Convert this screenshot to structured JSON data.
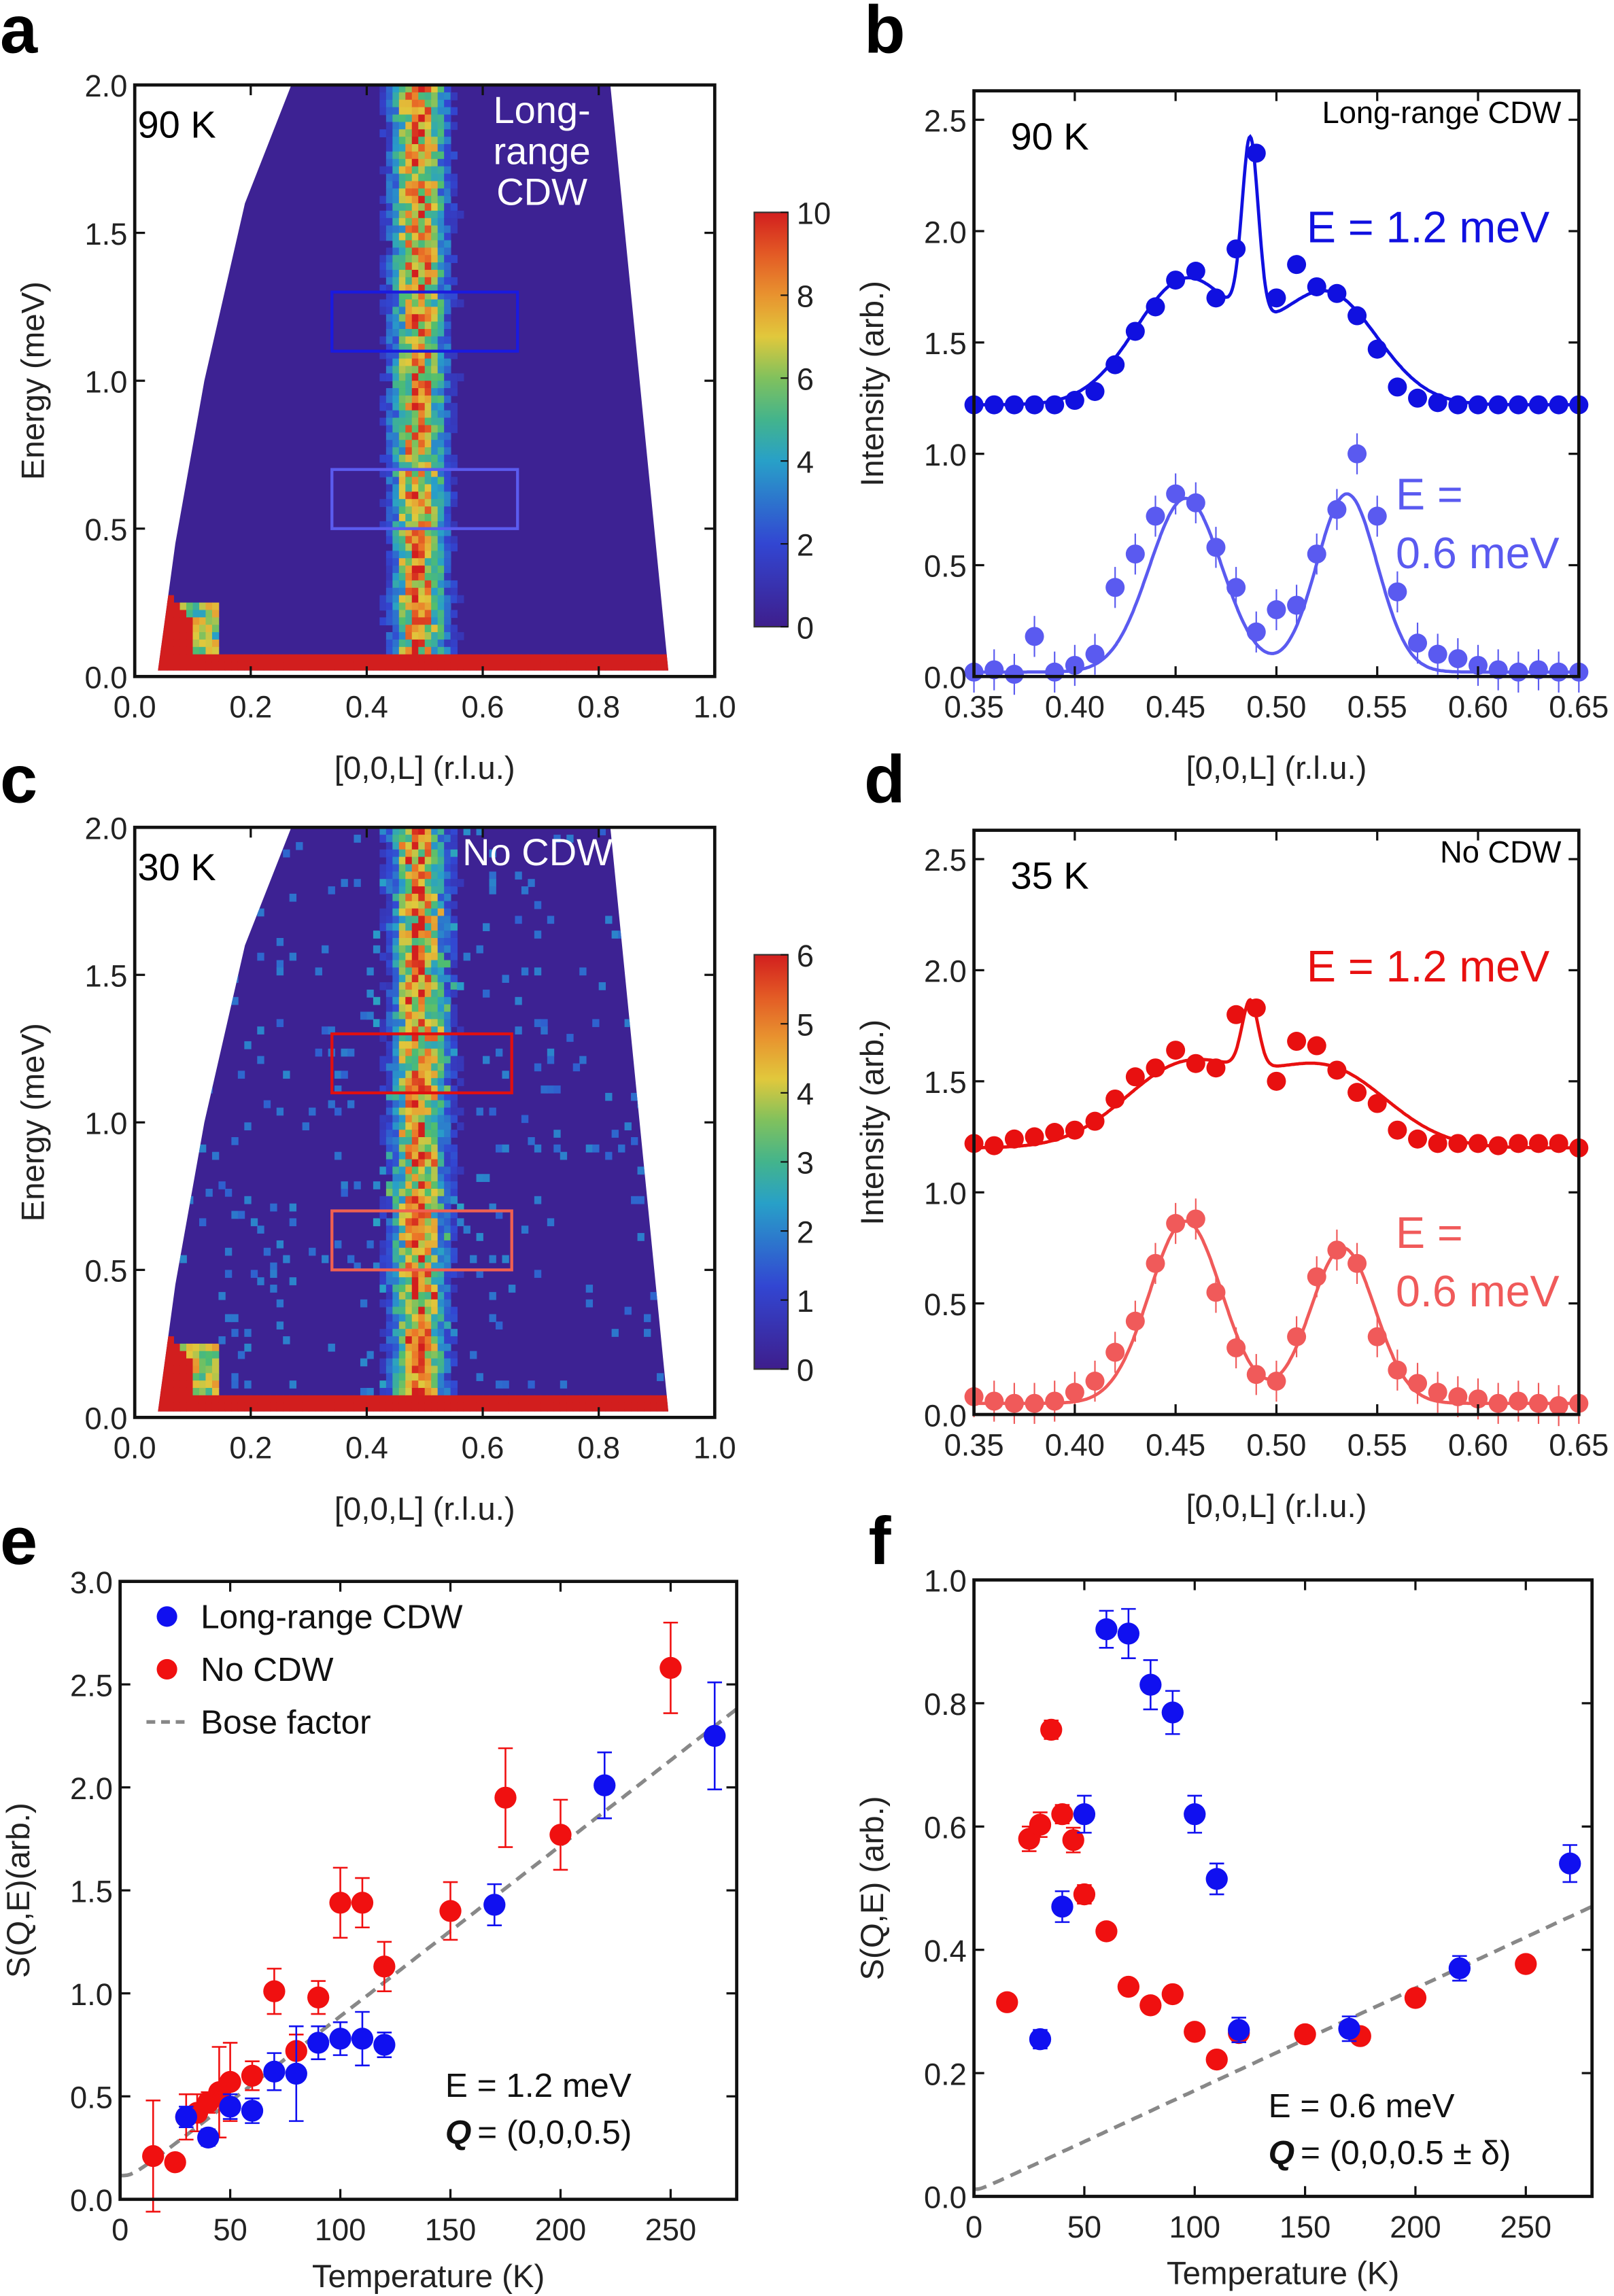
{
  "panel_labels": [
    "a",
    "b",
    "c",
    "d",
    "e",
    "f"
  ],
  "chart_data": [
    {
      "id": "a",
      "type": "heatmap",
      "annotation_temp": "90 K",
      "annotation_state": [
        "Long-",
        "range",
        "CDW"
      ],
      "xlabel": "[0,0,L] (r.l.u.)",
      "ylabel": "Energy (meV)",
      "xlim": [
        0,
        1.0
      ],
      "ylim": [
        0,
        2.0
      ],
      "xticks": [
        "0.0",
        "0.2",
        "0.4",
        "0.6",
        "0.8",
        "1.0"
      ],
      "yticks": [
        "0.0",
        "0.5",
        "1.0",
        "1.5",
        "2.0"
      ],
      "colorbar": {
        "range": [
          0,
          10
        ],
        "ticks": [
          "0",
          "2",
          "4",
          "6",
          "8",
          "10"
        ]
      },
      "boxes": [
        {
          "L": [
            0.34,
            0.66
          ],
          "E": [
            1.1,
            1.3
          ],
          "color": "#1a1adf"
        },
        {
          "L": [
            0.34,
            0.66
          ],
          "E": [
            0.5,
            0.7
          ],
          "color": "#5b5bef"
        }
      ],
      "peak_L": 0.49
    },
    {
      "id": "b",
      "type": "scatter",
      "annotation_temp": "90 K",
      "annotation_state": "Long-range CDW",
      "xlabel": "[0,0,L] (r.l.u.)",
      "ylabel": "Intensity (arb.)",
      "xlim": [
        0.35,
        0.65
      ],
      "ylim": [
        0,
        2.63
      ],
      "xticks": [
        "0.35",
        "0.40",
        "0.45",
        "0.50",
        "0.55",
        "0.60",
        "0.65"
      ],
      "yticks": [
        "0.0",
        "0.5",
        "1.0",
        "1.5",
        "2.0",
        "2.5"
      ],
      "x": [
        0.35,
        0.36,
        0.37,
        0.38,
        0.39,
        0.4,
        0.41,
        0.42,
        0.43,
        0.44,
        0.45,
        0.46,
        0.47,
        0.48,
        0.49,
        0.5,
        0.51,
        0.52,
        0.53,
        0.54,
        0.55,
        0.56,
        0.57,
        0.58,
        0.59,
        0.6,
        0.61,
        0.62,
        0.63,
        0.64,
        0.65
      ],
      "series": [
        {
          "name": "E = 1.2 meV",
          "label_lines": [
            "E = 1.2 meV"
          ],
          "color": "#1010e0",
          "values": [
            1.22,
            1.22,
            1.22,
            1.22,
            1.22,
            1.24,
            1.28,
            1.4,
            1.55,
            1.66,
            1.78,
            1.82,
            1.7,
            1.92,
            2.35,
            1.7,
            1.85,
            1.75,
            1.72,
            1.62,
            1.47,
            1.3,
            1.25,
            1.23,
            1.22,
            1.22,
            1.22,
            1.22,
            1.22,
            1.22,
            1.22
          ],
          "fit": {
            "baseline": 1.22,
            "peaks": [
              [
                0.455,
                0.56,
                0.025
              ],
              [
                0.525,
                0.5,
                0.025
              ],
              [
                0.487,
                0.8,
                0.004
              ]
            ]
          }
        },
        {
          "name": "E = 0.6 meV",
          "label_lines": [
            "E =",
            "0.6 meV"
          ],
          "color": "#5a5af0",
          "values": [
            0.02,
            0.03,
            0.01,
            0.18,
            0.02,
            0.05,
            0.1,
            0.4,
            0.55,
            0.72,
            0.82,
            0.78,
            0.58,
            0.4,
            0.2,
            0.3,
            0.32,
            0.55,
            0.75,
            1.0,
            0.72,
            0.38,
            0.15,
            0.1,
            0.08,
            0.05,
            0.03,
            0.02,
            0.03,
            0.02,
            0.02
          ],
          "fit": {
            "baseline": 0.02,
            "peaks": [
              [
                0.455,
                0.78,
                0.018
              ],
              [
                0.535,
                0.8,
                0.015
              ]
            ]
          }
        }
      ]
    },
    {
      "id": "c",
      "type": "heatmap",
      "annotation_temp": "30 K",
      "annotation_state": [
        "No CDW"
      ],
      "xlabel": "[0,0,L] (r.l.u.)",
      "ylabel": "Energy (meV)",
      "xlim": [
        0,
        1.0
      ],
      "ylim": [
        0,
        2.0
      ],
      "xticks": [
        "0.0",
        "0.2",
        "0.4",
        "0.6",
        "0.8",
        "1.0"
      ],
      "yticks": [
        "0.0",
        "0.5",
        "1.0",
        "1.5",
        "2.0"
      ],
      "colorbar": {
        "range": [
          0,
          6
        ],
        "ticks": [
          "0",
          "1",
          "2",
          "3",
          "4",
          "5",
          "6"
        ]
      },
      "boxes": [
        {
          "L": [
            0.34,
            0.65
          ],
          "E": [
            1.1,
            1.3
          ],
          "color": "#e01010"
        },
        {
          "L": [
            0.34,
            0.65
          ],
          "E": [
            0.5,
            0.7
          ],
          "color": "#f06050"
        }
      ],
      "peak_L": 0.49
    },
    {
      "id": "d",
      "type": "scatter",
      "annotation_temp": "35 K",
      "annotation_state": "No CDW",
      "xlabel": "[0,0,L] (r.l.u.)",
      "ylabel": "Intensity (arb.)",
      "xlim": [
        0.35,
        0.65
      ],
      "ylim": [
        0,
        2.63
      ],
      "xticks": [
        "0.35",
        "0.40",
        "0.45",
        "0.50",
        "0.55",
        "0.60",
        "0.65"
      ],
      "yticks": [
        "0.0",
        "0.5",
        "1.0",
        "1.5",
        "2.0",
        "2.5"
      ],
      "x": [
        0.35,
        0.36,
        0.37,
        0.38,
        0.39,
        0.4,
        0.41,
        0.42,
        0.43,
        0.44,
        0.45,
        0.46,
        0.47,
        0.48,
        0.49,
        0.5,
        0.51,
        0.52,
        0.53,
        0.54,
        0.55,
        0.56,
        0.57,
        0.58,
        0.59,
        0.6,
        0.61,
        0.62,
        0.63,
        0.64,
        0.65
      ],
      "series": [
        {
          "name": "E = 1.2 meV",
          "label_lines": [
            "E = 1.2 meV"
          ],
          "color": "#e81010",
          "values": [
            1.22,
            1.21,
            1.24,
            1.25,
            1.27,
            1.28,
            1.32,
            1.42,
            1.52,
            1.56,
            1.64,
            1.58,
            1.56,
            1.8,
            1.83,
            1.5,
            1.68,
            1.66,
            1.55,
            1.45,
            1.4,
            1.28,
            1.24,
            1.22,
            1.22,
            1.22,
            1.21,
            1.22,
            1.22,
            1.22,
            1.2
          ],
          "fit": {
            "baseline": 1.2,
            "peaks": [
              [
                0.455,
                0.37,
                0.03
              ],
              [
                0.525,
                0.35,
                0.03
              ],
              [
                0.487,
                0.3,
                0.004
              ]
            ]
          }
        },
        {
          "name": "E = 0.6 meV",
          "label_lines": [
            "E =",
            "0.6 meV"
          ],
          "color": "#f05a5a",
          "values": [
            0.08,
            0.06,
            0.05,
            0.05,
            0.06,
            0.1,
            0.15,
            0.28,
            0.42,
            0.68,
            0.86,
            0.88,
            0.55,
            0.3,
            0.18,
            0.15,
            0.35,
            0.62,
            0.74,
            0.68,
            0.35,
            0.2,
            0.14,
            0.1,
            0.08,
            0.07,
            0.05,
            0.06,
            0.05,
            0.04,
            0.05
          ],
          "fit": {
            "baseline": 0.05,
            "peaks": [
              [
                0.455,
                0.82,
                0.018
              ],
              [
                0.533,
                0.7,
                0.016
              ]
            ]
          }
        }
      ]
    },
    {
      "id": "e",
      "type": "scatter",
      "xlabel": "Temperature (K)",
      "ylabel": "S(Q,E)(arb.)",
      "xlim": [
        0,
        280
      ],
      "ylim": [
        0,
        3.0
      ],
      "xticks": [
        "0",
        "50",
        "100",
        "150",
        "200",
        "250"
      ],
      "yticks": [
        "0.0",
        "0.5",
        "1.0",
        "1.5",
        "2.0",
        "2.5",
        "3.0"
      ],
      "legend": [
        "Long-range CDW",
        "No CDW",
        "Bose factor"
      ],
      "annotation": [
        "E = 1.2 meV",
        "= (0,0,0.5)"
      ],
      "annotation_q": "Q",
      "bose": {
        "energy_meV": 1.2,
        "scale": 0.1155
      },
      "series": [
        {
          "name": "Long-range CDW",
          "color": "#1010f0",
          "x": [
            30,
            40,
            50,
            60,
            70,
            80,
            90,
            100,
            110,
            120,
            170,
            220,
            270
          ],
          "y": [
            0.4,
            0.3,
            0.45,
            0.43,
            0.62,
            0.61,
            0.76,
            0.78,
            0.78,
            0.75,
            1.43,
            2.01,
            2.25
          ],
          "err": [
            0.05,
            0.04,
            0.06,
            0.06,
            0.09,
            0.23,
            0.08,
            0.08,
            0.13,
            0.06,
            0.1,
            0.16,
            0.26
          ]
        },
        {
          "name": "No CDW",
          "color": "#f01010",
          "x": [
            15,
            25,
            30,
            35,
            40,
            45,
            50,
            60,
            70,
            80,
            90,
            100,
            110,
            120,
            150,
            175,
            200,
            250
          ],
          "y": [
            0.21,
            0.18,
            0.4,
            0.42,
            0.47,
            0.52,
            0.57,
            0.6,
            1.01,
            0.72,
            0.98,
            1.44,
            1.44,
            1.13,
            1.4,
            1.95,
            1.77,
            2.58
          ],
          "err": [
            0.27,
            0.03,
            0.11,
            0.09,
            0.05,
            0.22,
            0.19,
            0.07,
            0.11,
            0.08,
            0.08,
            0.17,
            0.12,
            0.12,
            0.14,
            0.24,
            0.17,
            0.22
          ]
        }
      ]
    },
    {
      "id": "f",
      "type": "scatter",
      "xlabel": "Temperature (K)",
      "ylabel": "S(Q,E) (arb.)",
      "xlim": [
        0,
        280
      ],
      "ylim": [
        0,
        1.0
      ],
      "xticks": [
        "0",
        "50",
        "100",
        "150",
        "200",
        "250"
      ],
      "yticks": [
        "0.0",
        "0.2",
        "0.4",
        "0.6",
        "0.8",
        "1.0"
      ],
      "annotation": [
        "E = 0.6 meV",
        "= (0,0,0.5 ± δ)"
      ],
      "annotation_q": "Q",
      "bose": {
        "energy_meV": 0.6,
        "scale": 0.01155
      },
      "series": [
        {
          "name": "Long-range CDW",
          "color": "#1010f0",
          "x": [
            30,
            40,
            50,
            60,
            70,
            80,
            90,
            100,
            110,
            120,
            170,
            220,
            270
          ],
          "y": [
            0.255,
            0.47,
            0.62,
            0.92,
            0.913,
            0.83,
            0.785,
            0.62,
            0.515,
            0.27,
            0.272,
            0.37,
            0.54
          ],
          "err": [
            0.015,
            0.025,
            0.03,
            0.03,
            0.04,
            0.04,
            0.035,
            0.03,
            0.025,
            0.02,
            0.02,
            0.02,
            0.03
          ]
        },
        {
          "name": "No CDW",
          "color": "#f01010",
          "x": [
            15,
            25,
            30,
            35,
            40,
            45,
            50,
            60,
            70,
            80,
            90,
            100,
            110,
            120,
            150,
            175,
            200,
            250
          ],
          "y": [
            0.315,
            0.58,
            0.603,
            0.757,
            0.62,
            0.578,
            0.49,
            0.43,
            0.34,
            0.31,
            0.328,
            0.267,
            0.222,
            0.265,
            0.263,
            0.26,
            0.322,
            0.377
          ],
          "err": [
            0.005,
            0.02,
            0.02,
            0.015,
            0.015,
            0.02,
            0.015,
            0.012,
            0.005,
            0.005,
            0.005,
            0.005,
            0.005,
            0.01,
            0.008,
            0.005,
            0.005,
            0.005
          ]
        }
      ]
    }
  ]
}
